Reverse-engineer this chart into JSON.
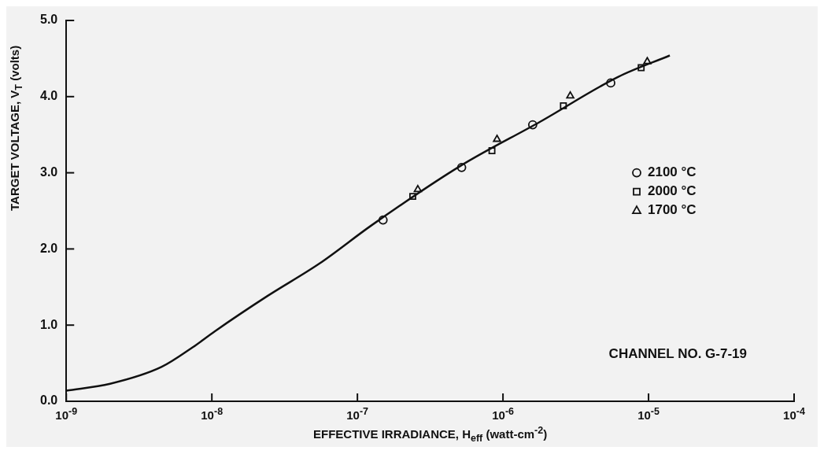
{
  "chart_data": {
    "type": "scatter",
    "xlabel": "EFFECTIVE IRRADIANCE, H$_{eff}$ (watt-cm$^{-2}$)",
    "ylabel": "TARGET VOLTAGE, V$_{T}$ (volts)",
    "log": "x",
    "legend": "right",
    "annotations": [
      "CHANNEL NO. G-7-19"
    ],
    "xlim": [
      1e-09,
      0.0001
    ],
    "xticks": [
      {
        "value": 1e-09,
        "label": "10$^{-9}$"
      },
      {
        "value": 1e-08,
        "label": "10$^{-8}$"
      },
      {
        "value": 1e-07,
        "label": "10$^{-7}$"
      },
      {
        "value": 1e-06,
        "label": "10$^{-6}$"
      },
      {
        "value": 1e-05,
        "label": "10$^{-5}$"
      },
      {
        "value": 0.0001,
        "label": "10$^{-4}$"
      }
    ],
    "ylim": [
      0,
      5
    ],
    "yticks": [
      {
        "value": 0,
        "label": "0.0"
      },
      {
        "value": 1,
        "label": "1.0"
      },
      {
        "value": 2,
        "label": "2.0"
      },
      {
        "value": 3,
        "label": "3.0"
      },
      {
        "value": 4,
        "label": "4.0"
      },
      {
        "value": 5,
        "label": "5.0"
      }
    ],
    "series": [
      {
        "type": "line",
        "color": "#111111",
        "marker": "none",
        "x": [
          1e-09,
          2e-09,
          4.5e-09,
          7.4e-09,
          1.05e-08,
          2.4e-08,
          5.5e-08,
          1.25e-07,
          5.1e-07,
          1.8e-06,
          6.2e-06,
          1.4e-05
        ],
        "values": [
          0.14,
          0.23,
          0.45,
          0.71,
          0.92,
          1.38,
          1.81,
          2.31,
          3.09,
          3.67,
          4.26,
          4.54
        ]
      },
      {
        "name": "2100 °C",
        "color": "#111111",
        "marker": "circle",
        "x": [
          1.5e-07,
          5.2e-07,
          1.6e-06,
          5.5e-06
        ],
        "values": [
          2.38,
          3.07,
          3.63,
          4.18
        ]
      },
      {
        "name": "2000 °C",
        "color": "#111111",
        "marker": "square",
        "x": [
          2.4e-07,
          8.4e-07,
          2.6e-06,
          8.9e-06
        ],
        "values": [
          2.69,
          3.29,
          3.88,
          4.38
        ]
      },
      {
        "name": "1700 °C",
        "color": "#111111",
        "marker": "triangle",
        "x": [
          2.6e-07,
          9.1e-07,
          2.9e-06,
          9.8e-06
        ],
        "values": [
          2.78,
          3.44,
          4.01,
          4.46
        ]
      }
    ]
  }
}
